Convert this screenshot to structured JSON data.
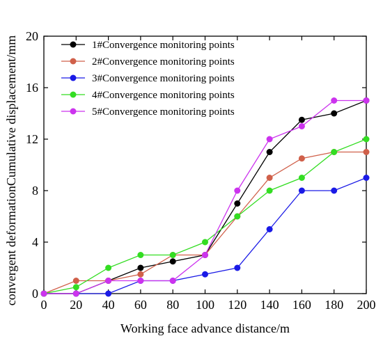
{
  "chart_data": {
    "type": "line",
    "title": "",
    "xlabel": "Working face advance distance/m",
    "ylabel": "convergent deformationCumulative displacement/mm",
    "xlim": [
      0,
      200
    ],
    "ylim": [
      0,
      20
    ],
    "x_ticks": [
      0,
      20,
      40,
      60,
      80,
      100,
      120,
      140,
      160,
      180,
      200
    ],
    "y_ticks": [
      0,
      4,
      8,
      12,
      16,
      20
    ],
    "grid": false,
    "legend_position": "top-left",
    "x": [
      0,
      20,
      40,
      60,
      80,
      100,
      120,
      140,
      160,
      180,
      200
    ],
    "series": [
      {
        "name": "1#Convergence monitoring points",
        "color": "#000000",
        "values": [
          0,
          0,
          1,
          2,
          2.5,
          3,
          7,
          11,
          13.5,
          14,
          15
        ]
      },
      {
        "name": "2#Convergence monitoring points",
        "color": "#d0604a",
        "values": [
          0,
          1,
          1,
          1.5,
          3,
          3,
          6,
          9,
          10.5,
          11,
          11
        ]
      },
      {
        "name": "3#Convergence monitoring points",
        "color": "#1a1ae6",
        "values": [
          0,
          0,
          0,
          1,
          1,
          1.5,
          2,
          5,
          8,
          8,
          9
        ]
      },
      {
        "name": "4#Convergence monitoring points",
        "color": "#33dd22",
        "values": [
          0,
          0.5,
          2,
          3,
          3,
          4,
          6,
          8,
          9,
          11,
          12
        ]
      },
      {
        "name": "5#Convergence monitoring points",
        "color": "#cc33ee",
        "values": [
          0,
          0,
          1,
          1,
          1,
          3,
          8,
          12,
          13,
          15,
          15
        ]
      }
    ]
  }
}
